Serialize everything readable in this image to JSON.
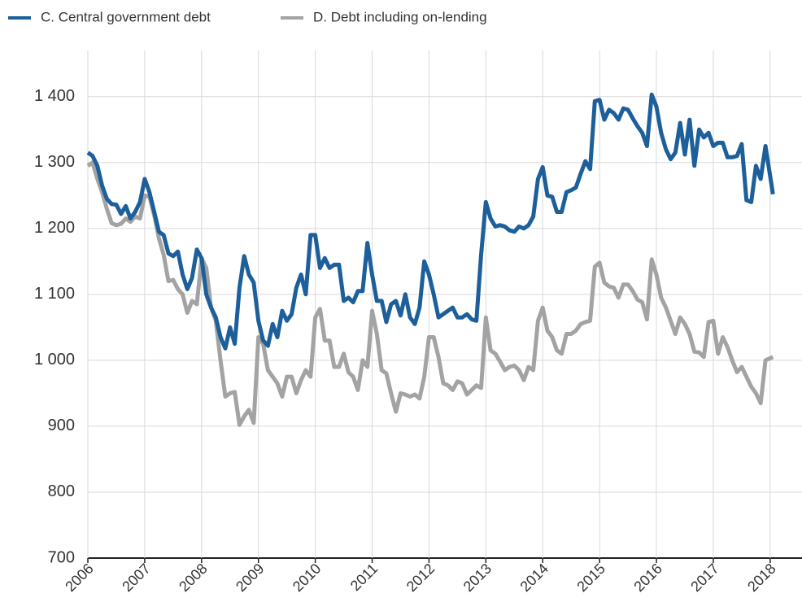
{
  "chart_data": {
    "type": "line",
    "x": [
      2006,
      2006.083,
      2006.167,
      2006.25,
      2006.333,
      2006.417,
      2006.5,
      2006.583,
      2006.667,
      2006.75,
      2006.833,
      2006.917,
      2007,
      2007.083,
      2007.167,
      2007.25,
      2007.333,
      2007.417,
      2007.5,
      2007.583,
      2007.667,
      2007.75,
      2007.833,
      2007.917,
      2008,
      2008.083,
      2008.167,
      2008.25,
      2008.333,
      2008.417,
      2008.5,
      2008.583,
      2008.667,
      2008.75,
      2008.833,
      2008.917,
      2009,
      2009.083,
      2009.167,
      2009.25,
      2009.333,
      2009.417,
      2009.5,
      2009.583,
      2009.667,
      2009.75,
      2009.833,
      2009.917,
      2010,
      2010.083,
      2010.167,
      2010.25,
      2010.333,
      2010.417,
      2010.5,
      2010.583,
      2010.667,
      2010.75,
      2010.833,
      2010.917,
      2011,
      2011.083,
      2011.167,
      2011.25,
      2011.333,
      2011.417,
      2011.5,
      2011.583,
      2011.667,
      2011.75,
      2011.833,
      2011.917,
      2012,
      2012.083,
      2012.167,
      2012.25,
      2012.333,
      2012.417,
      2012.5,
      2012.583,
      2012.667,
      2012.75,
      2012.833,
      2012.917,
      2013,
      2013.083,
      2013.167,
      2013.25,
      2013.333,
      2013.417,
      2013.5,
      2013.583,
      2013.667,
      2013.75,
      2013.833,
      2013.917,
      2014,
      2014.083,
      2014.167,
      2014.25,
      2014.333,
      2014.417,
      2014.5,
      2014.583,
      2014.667,
      2014.75,
      2014.833,
      2014.917,
      2015,
      2015.083,
      2015.167,
      2015.25,
      2015.333,
      2015.417,
      2015.5,
      2015.583,
      2015.667,
      2015.75,
      2015.833,
      2015.917,
      2016,
      2016.083,
      2016.167,
      2016.25,
      2016.333,
      2016.417,
      2016.5,
      2016.583,
      2016.667,
      2016.75,
      2016.833,
      2016.917,
      2017,
      2017.083,
      2017.167,
      2017.25,
      2017.333,
      2017.417,
      2017.5,
      2017.583,
      2017.667,
      2017.75,
      2017.833,
      2017.917,
      2018.05
    ],
    "series": [
      {
        "name": "C. Central government debt",
        "color": "#1c5f9b",
        "values": [
          1315,
          1310,
          1295,
          1265,
          1245,
          1237,
          1236,
          1222,
          1234,
          1215,
          1225,
          1240,
          1275,
          1255,
          1225,
          1195,
          1190,
          1162,
          1158,
          1165,
          1130,
          1108,
          1125,
          1168,
          1155,
          1100,
          1080,
          1065,
          1035,
          1018,
          1050,
          1025,
          1110,
          1158,
          1130,
          1118,
          1060,
          1030,
          1022,
          1055,
          1035,
          1075,
          1060,
          1070,
          1110,
          1130,
          1100,
          1190,
          1190,
          1140,
          1155,
          1140,
          1145,
          1145,
          1090,
          1095,
          1088,
          1105,
          1105,
          1178,
          1130,
          1090,
          1090,
          1058,
          1085,
          1090,
          1068,
          1100,
          1065,
          1055,
          1080,
          1150,
          1130,
          1100,
          1065,
          1070,
          1075,
          1080,
          1065,
          1065,
          1070,
          1062,
          1060,
          1160,
          1240,
          1215,
          1203,
          1205,
          1203,
          1197,
          1195,
          1203,
          1200,
          1205,
          1218,
          1275,
          1293,
          1250,
          1248,
          1225,
          1225,
          1255,
          1258,
          1262,
          1283,
          1302,
          1290,
          1393,
          1395,
          1365,
          1380,
          1375,
          1365,
          1382,
          1380,
          1367,
          1355,
          1345,
          1325,
          1403,
          1385,
          1345,
          1320,
          1305,
          1315,
          1360,
          1312,
          1365,
          1295,
          1350,
          1338,
          1345,
          1325,
          1330,
          1330,
          1308,
          1308,
          1310,
          1328,
          1243,
          1240,
          1295,
          1275,
          1325,
          1252
        ]
      },
      {
        "name": "D. Debt including on-lending",
        "color": "#a3a3a3",
        "values": [
          1295,
          1300,
          1275,
          1255,
          1230,
          1208,
          1205,
          1207,
          1215,
          1210,
          1218,
          1215,
          1250,
          1248,
          1220,
          1185,
          1160,
          1120,
          1122,
          1108,
          1100,
          1072,
          1090,
          1085,
          1155,
          1140,
          1080,
          1060,
          1000,
          945,
          950,
          952,
          902,
          915,
          925,
          905,
          1035,
          1025,
          985,
          975,
          965,
          945,
          975,
          975,
          950,
          970,
          985,
          975,
          1065,
          1078,
          1030,
          1030,
          990,
          990,
          1010,
          982,
          975,
          955,
          1000,
          990,
          1075,
          1040,
          985,
          980,
          950,
          922,
          950,
          948,
          945,
          948,
          942,
          975,
          1035,
          1035,
          1005,
          965,
          962,
          955,
          968,
          965,
          948,
          955,
          962,
          958,
          1065,
          1015,
          1010,
          998,
          985,
          990,
          992,
          985,
          970,
          990,
          985,
          1060,
          1080,
          1045,
          1035,
          1015,
          1010,
          1040,
          1040,
          1045,
          1055,
          1058,
          1060,
          1142,
          1148,
          1118,
          1112,
          1110,
          1095,
          1115,
          1115,
          1105,
          1092,
          1088,
          1062,
          1153,
          1130,
          1095,
          1080,
          1060,
          1040,
          1065,
          1055,
          1040,
          1013,
          1012,
          1005,
          1058,
          1060,
          1010,
          1035,
          1020,
          1000,
          982,
          990,
          975,
          960,
          950,
          935,
          1000,
          1005
        ]
      }
    ],
    "xlim": [
      2006,
      2018.56
    ],
    "xticks": [
      2006,
      2007,
      2008,
      2009,
      2010,
      2011,
      2012,
      2013,
      2014,
      2015,
      2016,
      2017,
      2018
    ],
    "ylim": [
      700,
      1470
    ],
    "yticks": [
      700,
      800,
      900,
      {
        "value": 1000,
        "label": "1 000"
      },
      {
        "value": 1100,
        "label": "1 100"
      },
      {
        "value": 1200,
        "label": "1 200"
      },
      {
        "value": 1300,
        "label": "1 300"
      },
      {
        "value": 1400,
        "label": "1 400"
      }
    ],
    "grid": true
  }
}
